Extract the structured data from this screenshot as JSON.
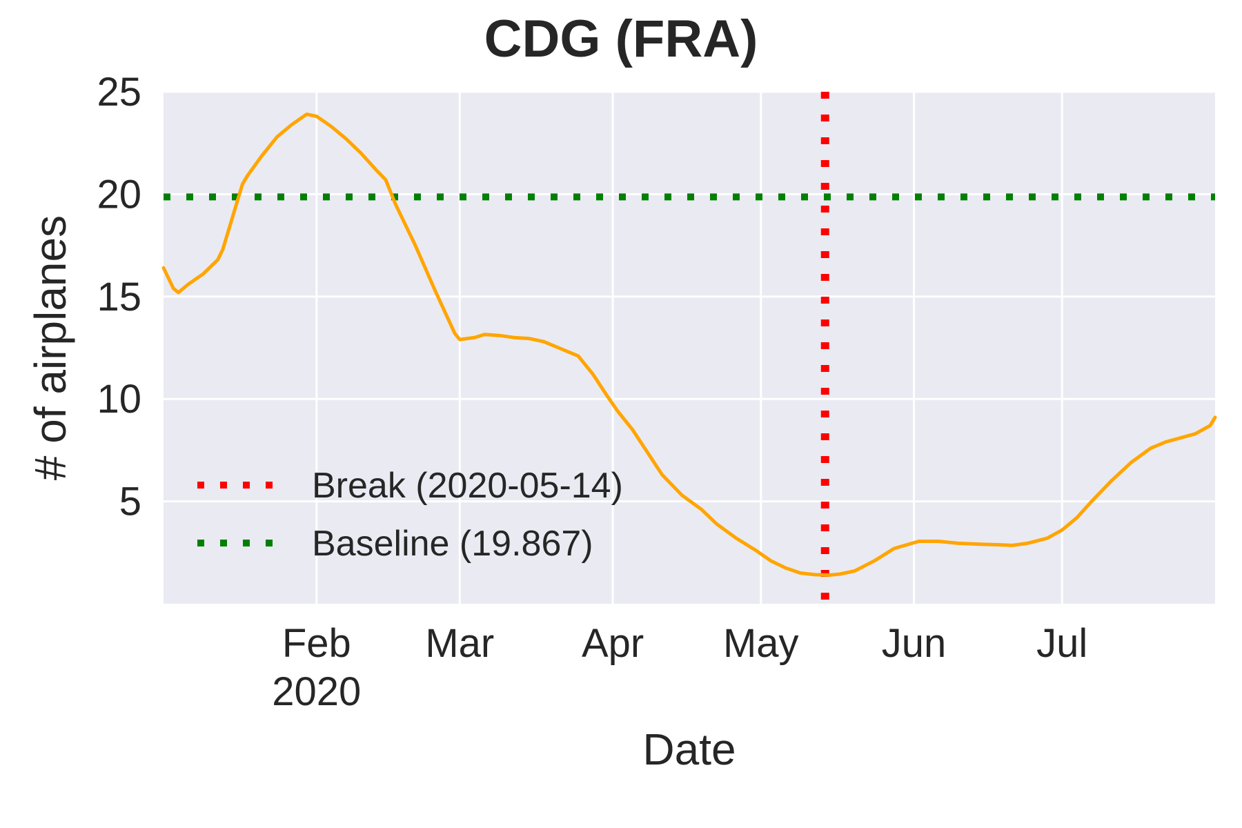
{
  "chart_data": {
    "type": "line",
    "title": "CDG (FRA)",
    "xlabel": "Date",
    "ylabel": "# of airplanes",
    "xlim": [
      "2020-01-01",
      "2020-07-31"
    ],
    "ylim": [
      0,
      25
    ],
    "grid": true,
    "background": "#eaeaf2",
    "y_ticks": [
      {
        "value": 5,
        "label": "5"
      },
      {
        "value": 10,
        "label": "10"
      },
      {
        "value": 15,
        "label": "15"
      },
      {
        "value": 20,
        "label": "20"
      },
      {
        "value": 25,
        "label": "25"
      }
    ],
    "x_ticks": [
      {
        "date": "2020-02-01",
        "label": "Feb",
        "sublabel": "2020"
      },
      {
        "date": "2020-03-01",
        "label": "Mar",
        "sublabel": ""
      },
      {
        "date": "2020-04-01",
        "label": "Apr",
        "sublabel": ""
      },
      {
        "date": "2020-05-01",
        "label": "May",
        "sublabel": ""
      },
      {
        "date": "2020-06-01",
        "label": "Jun",
        "sublabel": ""
      },
      {
        "date": "2020-07-01",
        "label": "Jul",
        "sublabel": ""
      }
    ],
    "series": [
      {
        "color": "#ffa500",
        "points": [
          [
            "2020-01-01",
            16.4
          ],
          [
            "2020-01-03",
            15.4
          ],
          [
            "2020-01-04",
            15.2
          ],
          [
            "2020-01-06",
            15.6
          ],
          [
            "2020-01-09",
            16.1
          ],
          [
            "2020-01-12",
            16.8
          ],
          [
            "2020-01-13",
            17.3
          ],
          [
            "2020-01-15",
            18.9
          ],
          [
            "2020-01-17",
            20.5
          ],
          [
            "2020-01-18",
            20.9
          ],
          [
            "2020-01-21",
            21.9
          ],
          [
            "2020-01-24",
            22.8
          ],
          [
            "2020-01-27",
            23.4
          ],
          [
            "2020-01-30",
            23.9
          ],
          [
            "2020-02-01",
            23.8
          ],
          [
            "2020-02-04",
            23.3
          ],
          [
            "2020-02-07",
            22.7
          ],
          [
            "2020-02-10",
            22.0
          ],
          [
            "2020-02-13",
            21.2
          ],
          [
            "2020-02-15",
            20.7
          ],
          [
            "2020-02-17",
            19.5
          ],
          [
            "2020-02-21",
            17.5
          ],
          [
            "2020-02-25",
            15.3
          ],
          [
            "2020-02-29",
            13.2
          ],
          [
            "2020-03-01",
            12.9
          ],
          [
            "2020-03-04",
            13.0
          ],
          [
            "2020-03-06",
            13.15
          ],
          [
            "2020-03-09",
            13.1
          ],
          [
            "2020-03-12",
            13.0
          ],
          [
            "2020-03-15",
            12.95
          ],
          [
            "2020-03-18",
            12.8
          ],
          [
            "2020-03-21",
            12.5
          ],
          [
            "2020-03-25",
            12.1
          ],
          [
            "2020-03-28",
            11.2
          ],
          [
            "2020-03-31",
            10.1
          ],
          [
            "2020-04-02",
            9.4
          ],
          [
            "2020-04-05",
            8.5
          ],
          [
            "2020-04-08",
            7.4
          ],
          [
            "2020-04-11",
            6.3
          ],
          [
            "2020-04-15",
            5.3
          ],
          [
            "2020-04-19",
            4.6
          ],
          [
            "2020-04-22",
            3.9
          ],
          [
            "2020-04-26",
            3.2
          ],
          [
            "2020-04-30",
            2.6
          ],
          [
            "2020-05-03",
            2.1
          ],
          [
            "2020-05-06",
            1.75
          ],
          [
            "2020-05-09",
            1.5
          ],
          [
            "2020-05-12",
            1.42
          ],
          [
            "2020-05-15",
            1.4
          ],
          [
            "2020-05-17",
            1.45
          ],
          [
            "2020-05-20",
            1.6
          ],
          [
            "2020-05-24",
            2.1
          ],
          [
            "2020-05-28",
            2.7
          ],
          [
            "2020-06-02",
            3.05
          ],
          [
            "2020-06-06",
            3.05
          ],
          [
            "2020-06-10",
            2.95
          ],
          [
            "2020-06-15",
            2.9
          ],
          [
            "2020-06-18",
            2.88
          ],
          [
            "2020-06-21",
            2.85
          ],
          [
            "2020-06-24",
            2.95
          ],
          [
            "2020-06-28",
            3.2
          ],
          [
            "2020-07-01",
            3.6
          ],
          [
            "2020-07-04",
            4.2
          ],
          [
            "2020-07-07",
            5.0
          ],
          [
            "2020-07-11",
            6.0
          ],
          [
            "2020-07-15",
            6.9
          ],
          [
            "2020-07-19",
            7.6
          ],
          [
            "2020-07-22",
            7.9
          ],
          [
            "2020-07-25",
            8.1
          ],
          [
            "2020-07-28",
            8.3
          ],
          [
            "2020-07-31",
            8.7
          ],
          [
            "2020-08-01",
            9.1
          ]
        ]
      }
    ],
    "reference_lines": [
      {
        "orientation": "vertical",
        "date": "2020-05-14",
        "color": "#ff0000",
        "style": "dotted",
        "legend_label": "Break (2020-05-14)"
      },
      {
        "orientation": "horizontal",
        "value": 19.867,
        "color": "#008000",
        "style": "dotted",
        "legend_label": "Baseline (19.867)"
      }
    ],
    "legend": {
      "placement": "lower-left"
    }
  }
}
